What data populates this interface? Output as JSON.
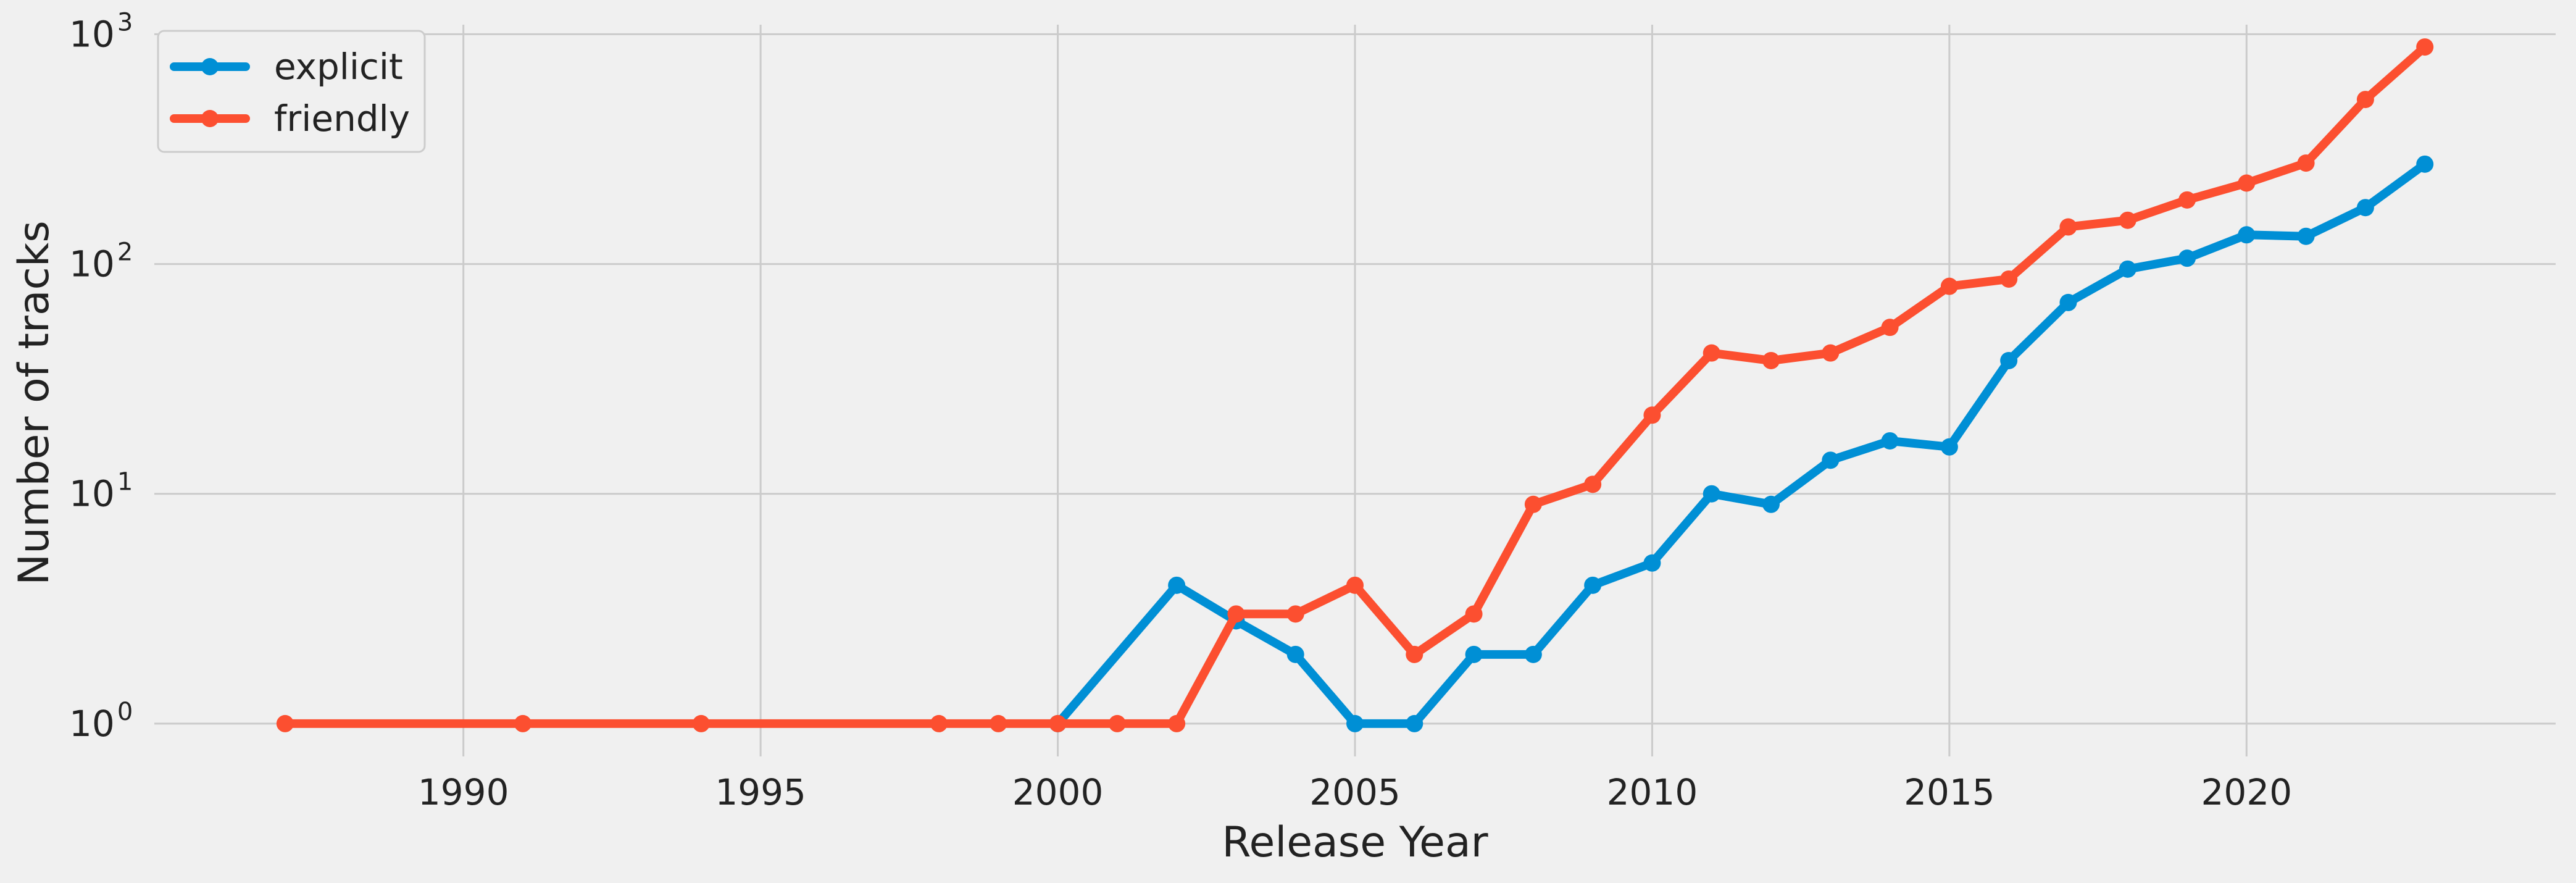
{
  "chart_data": {
    "type": "line",
    "title": "",
    "xlabel": "Release Year",
    "ylabel": "Number of tracks",
    "xlim": [
      1984.8,
      2025.2
    ],
    "xticks": [
      1990,
      1995,
      2000,
      2005,
      2010,
      2015,
      2020
    ],
    "ylim": [
      0.72,
      1100
    ],
    "yscale": "log",
    "yticks": [
      {
        "value": 1,
        "base": "10",
        "exp": "0"
      },
      {
        "value": 10,
        "base": "10",
        "exp": "1"
      },
      {
        "value": 100,
        "base": "10",
        "exp": "2"
      },
      {
        "value": 1000,
        "base": "10",
        "exp": "3"
      }
    ],
    "grid": true,
    "legend_position": "top-left",
    "series": [
      {
        "name": "explicit",
        "color": "#008fd5",
        "points": [
          [
            2000,
            1
          ],
          [
            2002,
            4
          ],
          [
            2003,
            2.8
          ],
          [
            2004,
            2
          ],
          [
            2005,
            1
          ],
          [
            2006,
            1
          ],
          [
            2007,
            2
          ],
          [
            2008,
            2
          ],
          [
            2009,
            4
          ],
          [
            2010,
            5
          ],
          [
            2011,
            10
          ],
          [
            2012,
            9
          ],
          [
            2013,
            14
          ],
          [
            2014,
            17
          ],
          [
            2015,
            16
          ],
          [
            2016,
            38
          ],
          [
            2017,
            68
          ],
          [
            2018,
            95
          ],
          [
            2019,
            106
          ],
          [
            2020,
            134
          ],
          [
            2021,
            132
          ],
          [
            2022,
            176
          ],
          [
            2023,
            272
          ]
        ]
      },
      {
        "name": "friendly",
        "color": "#fc4f30",
        "points": [
          [
            1987,
            1
          ],
          [
            1991,
            1
          ],
          [
            1994,
            1
          ],
          [
            1998,
            1
          ],
          [
            1999,
            1
          ],
          [
            2000,
            1
          ],
          [
            2001,
            1
          ],
          [
            2002,
            1
          ],
          [
            2003,
            3
          ],
          [
            2004,
            3
          ],
          [
            2005,
            4
          ],
          [
            2006,
            2
          ],
          [
            2007,
            3
          ],
          [
            2008,
            9
          ],
          [
            2009,
            11
          ],
          [
            2010,
            22
          ],
          [
            2011,
            41
          ],
          [
            2012,
            38
          ],
          [
            2013,
            41
          ],
          [
            2014,
            53
          ],
          [
            2015,
            80
          ],
          [
            2016,
            86
          ],
          [
            2017,
            145
          ],
          [
            2018,
            155
          ],
          [
            2019,
            190
          ],
          [
            2020,
            225
          ],
          [
            2021,
            275
          ],
          [
            2022,
            520
          ],
          [
            2023,
            880
          ]
        ]
      }
    ]
  }
}
